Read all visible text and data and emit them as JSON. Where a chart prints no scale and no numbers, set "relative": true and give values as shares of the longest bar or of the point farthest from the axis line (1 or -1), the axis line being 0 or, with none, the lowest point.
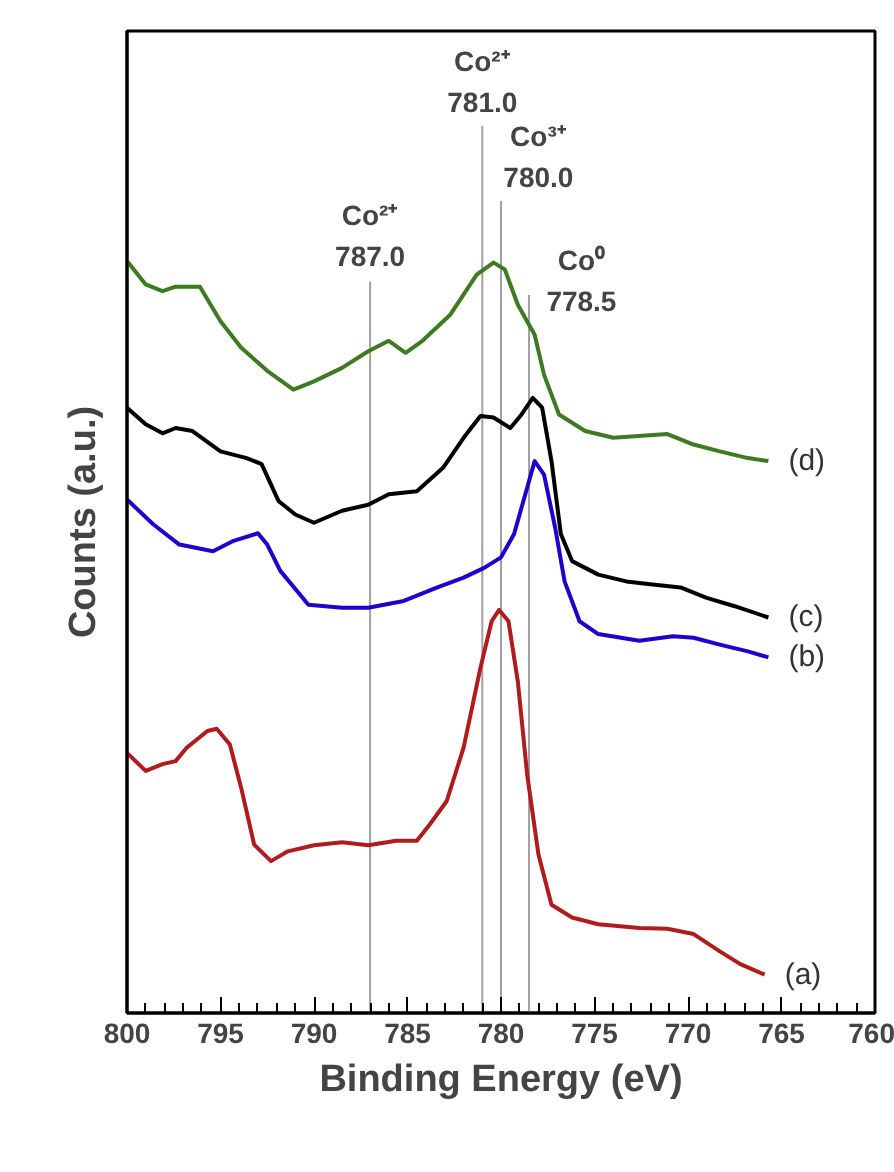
{
  "chart_data": {
    "type": "line",
    "relative": true,
    "xlabel": "Binding Energy (eV)",
    "ylabel": "Counts (a.u.)",
    "xlim": [
      800,
      760
    ],
    "xticks": [
      800,
      795,
      790,
      785,
      780,
      775,
      770,
      765,
      760
    ],
    "grid": false,
    "marker": "none",
    "line_style": "solid",
    "ref_lines": [
      {
        "axis": "x",
        "value": 787.0,
        "label": "Co²⁺\n787.0",
        "color": "#a0a0a0"
      },
      {
        "axis": "x",
        "value": 781.0,
        "label": "Co²⁺\n781.0",
        "color": "#a0a0a0"
      },
      {
        "axis": "x",
        "value": 780.0,
        "label": "Co³⁺\n780.0",
        "color": "#a0a0a0"
      },
      {
        "axis": "x",
        "value": 778.5,
        "label": "Co⁰\n778.5",
        "color": "#a0a0a0"
      }
    ],
    "series": [
      {
        "name": "(d)",
        "color": "#3d7a22",
        "x": [
          800.0,
          799.0,
          798.1,
          797.4,
          796.1,
          795.0,
          793.9,
          792.5,
          791.1,
          790.0,
          788.5,
          787.1,
          786.0,
          785.1,
          784.2,
          782.7,
          781.3,
          780.4,
          779.8,
          779.1,
          778.2,
          777.7,
          776.9,
          775.5,
          774.0,
          771.1,
          769.7,
          768.3,
          766.8,
          765.7
        ],
        "values": [
          1.0,
          0.969,
          0.96,
          0.966,
          0.966,
          0.92,
          0.885,
          0.854,
          0.829,
          0.84,
          0.858,
          0.88,
          0.894,
          0.878,
          0.894,
          0.929,
          0.982,
          0.998,
          0.989,
          0.942,
          0.902,
          0.849,
          0.796,
          0.774,
          0.765,
          0.77,
          0.756,
          0.747,
          0.738,
          0.734
        ]
      },
      {
        "name": "(c)",
        "color": "#000000",
        "x": [
          800.0,
          799.0,
          798.1,
          797.4,
          796.5,
          795.0,
          793.6,
          792.8,
          791.9,
          791.0,
          790.0,
          788.5,
          787.1,
          786.0,
          784.5,
          783.1,
          782.0,
          781.1,
          780.4,
          779.5,
          778.9,
          778.3,
          777.8,
          777.3,
          776.8,
          776.2,
          774.8,
          773.3,
          771.9,
          770.4,
          769.0,
          767.5,
          765.7
        ],
        "values": [
          0.805,
          0.783,
          0.771,
          0.778,
          0.774,
          0.747,
          0.738,
          0.73,
          0.681,
          0.663,
          0.652,
          0.668,
          0.676,
          0.69,
          0.694,
          0.725,
          0.765,
          0.794,
          0.792,
          0.778,
          0.796,
          0.818,
          0.805,
          0.734,
          0.637,
          0.601,
          0.583,
          0.574,
          0.57,
          0.566,
          0.552,
          0.541,
          0.526
        ]
      },
      {
        "name": "(b)",
        "color": "#2200cc",
        "x": [
          800.0,
          798.6,
          797.2,
          795.4,
          794.3,
          793.0,
          792.5,
          791.8,
          790.3,
          788.5,
          787.1,
          785.2,
          783.4,
          782.0,
          780.9,
          780.0,
          779.3,
          778.7,
          778.2,
          777.7,
          777.1,
          776.6,
          775.8,
          774.8,
          772.6,
          770.8,
          769.7,
          768.3,
          766.8,
          765.7
        ],
        "values": [
          0.683,
          0.65,
          0.623,
          0.614,
          0.628,
          0.638,
          0.623,
          0.588,
          0.543,
          0.539,
          0.539,
          0.548,
          0.566,
          0.579,
          0.592,
          0.606,
          0.637,
          0.69,
          0.734,
          0.716,
          0.645,
          0.574,
          0.521,
          0.504,
          0.495,
          0.501,
          0.499,
          0.49,
          0.481,
          0.473
        ]
      },
      {
        "name": "(a)",
        "color": "#b01c1c",
        "x": [
          800.0,
          799.0,
          798.1,
          797.4,
          796.8,
          795.7,
          795.2,
          794.5,
          793.9,
          793.2,
          792.3,
          791.4,
          790.0,
          788.5,
          787.1,
          785.6,
          784.5,
          783.8,
          782.9,
          782.0,
          781.1,
          780.5,
          780.1,
          779.6,
          779.1,
          778.6,
          778.0,
          777.3,
          776.2,
          774.8,
          772.6,
          771.1,
          769.7,
          768.3,
          767.2,
          765.9
        ],
        "values": [
          0.346,
          0.322,
          0.331,
          0.335,
          0.353,
          0.375,
          0.378,
          0.357,
          0.3,
          0.224,
          0.202,
          0.215,
          0.223,
          0.227,
          0.223,
          0.229,
          0.229,
          0.251,
          0.282,
          0.353,
          0.459,
          0.521,
          0.536,
          0.521,
          0.441,
          0.317,
          0.211,
          0.144,
          0.127,
          0.118,
          0.113,
          0.112,
          0.105,
          0.082,
          0.065,
          0.051
        ]
      }
    ]
  }
}
